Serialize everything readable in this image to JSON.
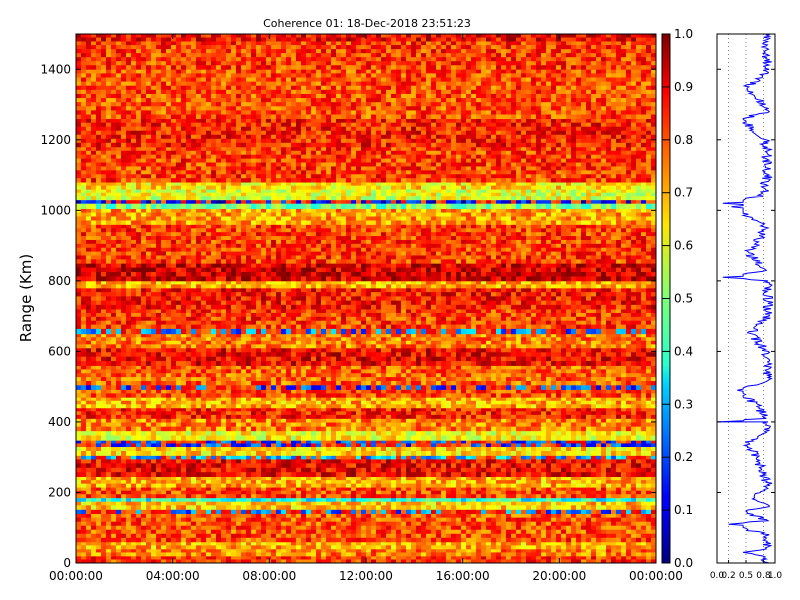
{
  "chart_data": [
    {
      "type": "heatmap",
      "title": "Coherence 01: 18-Dec-2018 23:51:23",
      "xlabel": "",
      "ylabel": "Range (Km)",
      "x_ticks": [
        "00:00:00",
        "04:00:00",
        "08:00:00",
        "12:00:00",
        "16:00:00",
        "20:00:00",
        "00:00:00"
      ],
      "x_range": [
        "00:00:00",
        "24:00:00"
      ],
      "ylim": [
        0,
        1500
      ],
      "y_ticks": [
        0,
        200,
        400,
        600,
        800,
        1000,
        1200,
        1400
      ],
      "colormap": "jet",
      "colorbar": {
        "range": [
          0.0,
          1.0
        ],
        "ticks": [
          "0.0",
          "0.1",
          "0.2",
          "0.3",
          "0.4",
          "0.5",
          "0.6",
          "0.7",
          "0.8",
          "0.9",
          "1.0"
        ]
      },
      "range_bands": [
        {
          "from": 0,
          "to": 20,
          "value": 0.82
        },
        {
          "from": 20,
          "to": 40,
          "value": 0.75
        },
        {
          "from": 40,
          "to": 60,
          "value": 0.7
        },
        {
          "from": 60,
          "to": 140,
          "value": 0.8
        },
        {
          "from": 140,
          "to": 152,
          "value": 0.25
        },
        {
          "from": 152,
          "to": 175,
          "value": 0.68
        },
        {
          "from": 175,
          "to": 185,
          "value": 0.4
        },
        {
          "from": 185,
          "to": 215,
          "value": 0.8
        },
        {
          "from": 215,
          "to": 245,
          "value": 0.7
        },
        {
          "from": 245,
          "to": 295,
          "value": 0.88
        },
        {
          "from": 295,
          "to": 305,
          "value": 0.3
        },
        {
          "from": 305,
          "to": 330,
          "value": 0.66
        },
        {
          "from": 330,
          "to": 348,
          "value": 0.2
        },
        {
          "from": 348,
          "to": 375,
          "value": 0.62
        },
        {
          "from": 375,
          "to": 410,
          "value": 0.75
        },
        {
          "from": 410,
          "to": 440,
          "value": 0.85
        },
        {
          "from": 440,
          "to": 470,
          "value": 0.7
        },
        {
          "from": 470,
          "to": 492,
          "value": 0.8
        },
        {
          "from": 492,
          "to": 505,
          "value": 0.2
        },
        {
          "from": 505,
          "to": 560,
          "value": 0.78
        },
        {
          "from": 560,
          "to": 610,
          "value": 0.88
        },
        {
          "from": 610,
          "to": 650,
          "value": 0.75
        },
        {
          "from": 650,
          "to": 665,
          "value": 0.25
        },
        {
          "from": 665,
          "to": 720,
          "value": 0.82
        },
        {
          "from": 720,
          "to": 780,
          "value": 0.86
        },
        {
          "from": 780,
          "to": 800,
          "value": 0.7
        },
        {
          "from": 800,
          "to": 850,
          "value": 0.92
        },
        {
          "from": 850,
          "to": 960,
          "value": 0.82
        },
        {
          "from": 960,
          "to": 1005,
          "value": 0.72
        },
        {
          "from": 1005,
          "to": 1020,
          "value": 0.5
        },
        {
          "from": 1020,
          "to": 1030,
          "value": 0.12
        },
        {
          "from": 1030,
          "to": 1060,
          "value": 0.6
        },
        {
          "from": 1060,
          "to": 1080,
          "value": 0.65
        },
        {
          "from": 1080,
          "to": 1180,
          "value": 0.82
        },
        {
          "from": 1180,
          "to": 1260,
          "value": 0.85
        },
        {
          "from": 1260,
          "to": 1400,
          "value": 0.8
        },
        {
          "from": 1400,
          "to": 1480,
          "value": 0.82
        },
        {
          "from": 1480,
          "to": 1500,
          "value": 0.88
        }
      ]
    },
    {
      "type": "line",
      "title": "",
      "xlabel": "",
      "ylabel": "",
      "xlim": [
        0.0,
        1.0
      ],
      "x_ticks": [
        "0.0",
        "0.2",
        "0.5",
        "0.8",
        "1.0"
      ],
      "ylim": [
        0,
        1500
      ],
      "grid": true,
      "color": "#0000ff",
      "profile": [
        {
          "range": 0,
          "coherence": 0.9
        },
        {
          "range": 20,
          "coherence": 0.78
        },
        {
          "range": 30,
          "coherence": 0.45
        },
        {
          "range": 40,
          "coherence": 0.85
        },
        {
          "range": 80,
          "coherence": 0.9
        },
        {
          "range": 110,
          "coherence": 0.2
        },
        {
          "range": 120,
          "coherence": 0.88
        },
        {
          "range": 147,
          "coherence": 0.5
        },
        {
          "range": 160,
          "coherence": 0.9
        },
        {
          "range": 185,
          "coherence": 0.65
        },
        {
          "range": 220,
          "coherence": 0.9
        },
        {
          "range": 300,
          "coherence": 0.7
        },
        {
          "range": 340,
          "coherence": 0.55
        },
        {
          "range": 370,
          "coherence": 0.85
        },
        {
          "range": 400,
          "coherence": 0.88
        },
        {
          "range": 400,
          "coherence": 0.0
        },
        {
          "range": 410,
          "coherence": 0.85
        },
        {
          "range": 450,
          "coherence": 0.7
        },
        {
          "range": 490,
          "coherence": 0.35
        },
        {
          "range": 520,
          "coherence": 0.9
        },
        {
          "range": 600,
          "coherence": 0.88
        },
        {
          "range": 650,
          "coherence": 0.6
        },
        {
          "range": 700,
          "coherence": 0.9
        },
        {
          "range": 800,
          "coherence": 0.88
        },
        {
          "range": 810,
          "coherence": 0.1
        },
        {
          "range": 830,
          "coherence": 0.85
        },
        {
          "range": 880,
          "coherence": 0.55
        },
        {
          "range": 950,
          "coherence": 0.88
        },
        {
          "range": 1010,
          "coherence": 0.25
        },
        {
          "range": 1020,
          "coherence": 0.1
        },
        {
          "range": 1040,
          "coherence": 0.8
        },
        {
          "range": 1100,
          "coherence": 0.9
        },
        {
          "range": 1200,
          "coherence": 0.85
        },
        {
          "range": 1260,
          "coherence": 0.45
        },
        {
          "range": 1280,
          "coherence": 0.9
        },
        {
          "range": 1350,
          "coherence": 0.55
        },
        {
          "range": 1400,
          "coherence": 0.9
        },
        {
          "range": 1460,
          "coherence": 0.85
        },
        {
          "range": 1500,
          "coherence": 0.92
        }
      ]
    }
  ]
}
